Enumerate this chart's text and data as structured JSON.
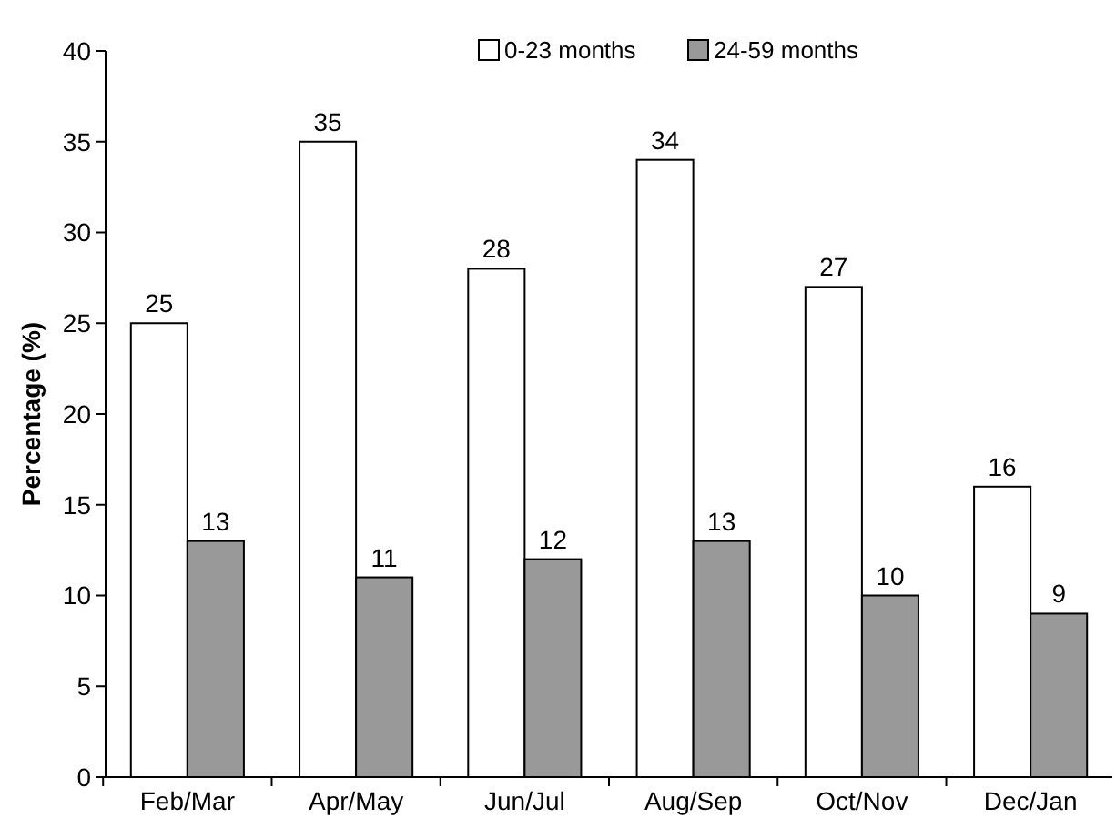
{
  "chart_data": {
    "type": "bar",
    "ylabel": "Percentage (%)",
    "categories": [
      "Feb/Mar",
      "Apr/May",
      "Jun/Jul",
      "Aug/Sep",
      "Oct/Nov",
      "Dec/Jan"
    ],
    "series": [
      {
        "name": "0-23 months",
        "color": "#ffffff",
        "values": [
          25,
          35,
          28,
          34,
          27,
          16
        ]
      },
      {
        "name": "24-59 months",
        "color": "#999999",
        "values": [
          13,
          11,
          12,
          13,
          10,
          9
        ]
      }
    ],
    "ylim": [
      0,
      40
    ],
    "yticks": [
      0,
      5,
      10,
      15,
      20,
      25,
      30,
      35,
      40
    ],
    "data_labels": true,
    "legend": "top",
    "grid": false
  }
}
